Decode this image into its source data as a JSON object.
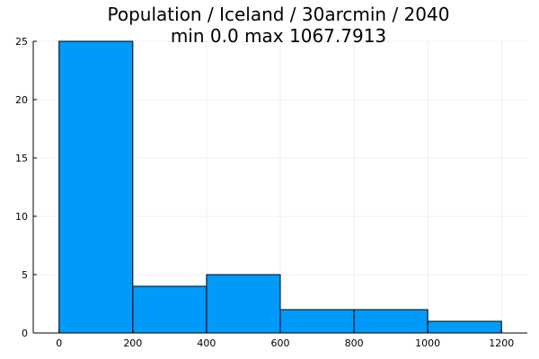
{
  "chart_data": {
    "type": "bar",
    "title": "Population / Iceland / 30arcmin / 2040",
    "subtitle": "min 0.0  max 1067.7913",
    "xlabel": "",
    "ylabel": "",
    "bins": [
      {
        "x0": 0,
        "x1": 200,
        "count": 25
      },
      {
        "x0": 200,
        "x1": 400,
        "count": 4
      },
      {
        "x0": 400,
        "x1": 600,
        "count": 5
      },
      {
        "x0": 600,
        "x1": 800,
        "count": 2
      },
      {
        "x0": 800,
        "x1": 1000,
        "count": 2
      },
      {
        "x0": 1000,
        "x1": 1200,
        "count": 1
      }
    ],
    "xlim": [
      -70,
      1270
    ],
    "ylim": [
      0,
      25
    ],
    "x_ticks": [
      0,
      200,
      400,
      600,
      800,
      1000,
      1200
    ],
    "y_ticks": [
      0,
      5,
      10,
      15,
      20,
      25
    ],
    "grid": true,
    "legend": "none",
    "bar_color": "#009AFA"
  }
}
